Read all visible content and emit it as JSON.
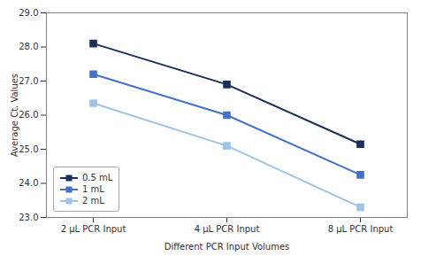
{
  "chart_data": {
    "type": "line",
    "categories": [
      "2 μL PCR Input",
      "4 μL PCR Input",
      "8 μL PCR Input"
    ],
    "series": [
      {
        "name": "0.5 mL",
        "color": "#1a2f5a",
        "marker": "square",
        "values": [
          28.1,
          26.9,
          25.15
        ]
      },
      {
        "name": "1 mL",
        "color": "#4472c4",
        "marker": "square",
        "values": [
          27.2,
          26.0,
          24.25
        ]
      },
      {
        "name": "2 mL",
        "color": "#9dc3e6",
        "marker": "square",
        "values": [
          26.35,
          25.1,
          23.3
        ]
      }
    ],
    "xlabel": "Different PCR Input Volumes",
    "ylabel": "Average Ct. Values",
    "ylim": [
      23,
      29
    ],
    "yticks": [
      23,
      24,
      25,
      26,
      27,
      28,
      29
    ],
    "grid": false,
    "legend": "lower left"
  }
}
